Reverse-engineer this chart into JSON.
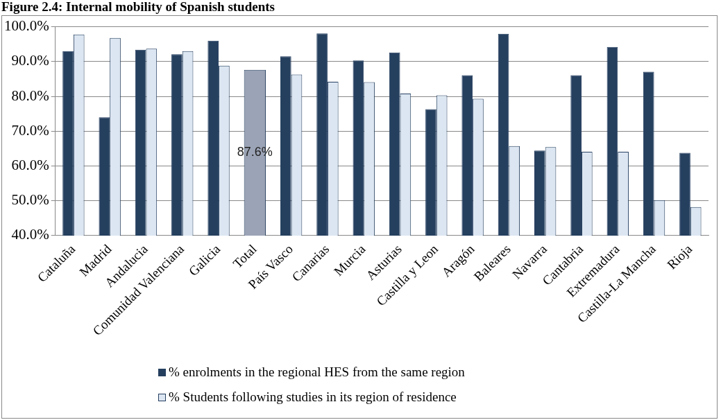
{
  "chart_data": {
    "type": "bar",
    "title": "Figure 2.4: Internal mobility of Spanish students",
    "categories": [
      "Cataluña",
      "Madrid",
      "Andalucia",
      "Comunidad Valenciana",
      "Galicia",
      "Total",
      "País Vasco",
      "Canarias",
      "Murcia",
      "Asturias",
      "Castilla y Leon",
      "Aragón",
      "Baleares",
      "Navarra",
      "Cantabria",
      "Extremadura",
      "Castilla-La Mancha",
      "Rioja"
    ],
    "series": [
      {
        "name": "% enrolments in the regional HES from the same region",
        "color": "#253f5f",
        "colors": [
          "#253f5f",
          "#253f5f",
          "#253f5f",
          "#253f5f",
          "#253f5f",
          "#9ba4b6",
          "#253f5f",
          "#253f5f",
          "#253f5f",
          "#253f5f",
          "#253f5f",
          "#253f5f",
          "#253f5f",
          "#253f5f",
          "#253f5f",
          "#253f5f",
          "#253f5f",
          "#253f5f"
        ],
        "values": [
          93.0,
          74.0,
          93.4,
          92.1,
          96.0,
          87.6,
          91.5,
          98.1,
          90.3,
          92.6,
          76.3,
          86.1,
          98.0,
          64.4,
          86.1,
          94.2,
          87.1,
          63.8
        ],
        "value_labels": [
          null,
          null,
          null,
          null,
          null,
          "87.6%",
          null,
          null,
          null,
          null,
          null,
          null,
          null,
          null,
          null,
          null,
          null,
          null
        ]
      },
      {
        "name": "% Students following studies in its region of residence",
        "color": "#dce6f2",
        "values": [
          97.8,
          96.8,
          93.7,
          93.0,
          88.8,
          null,
          86.3,
          84.2,
          84.1,
          80.8,
          80.3,
          79.3,
          65.7,
          65.4,
          64.1,
          64.1,
          50.2,
          48.2
        ]
      }
    ],
    "ylim": [
      40,
      100
    ],
    "yticks": [
      {
        "value": 40,
        "label": "40.0%"
      },
      {
        "value": 50,
        "label": "50.0%"
      },
      {
        "value": 60,
        "label": "60.0%"
      },
      {
        "value": 70,
        "label": "70.0%"
      },
      {
        "value": 80,
        "label": "80.0%"
      },
      {
        "value": 90,
        "label": "90.0%"
      },
      {
        "value": 100,
        "label": "100.0%"
      }
    ],
    "grid": "y",
    "legend": "bottom"
  }
}
